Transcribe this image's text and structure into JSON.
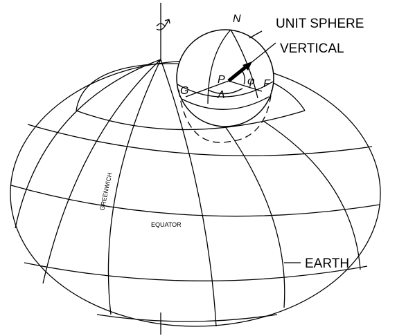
{
  "labels": {
    "unit_sphere": "UNIT SPHERE",
    "vertical": "VERTICAL",
    "earth": "EARTH",
    "north": "N",
    "point": "P",
    "greenwich_dir": "G",
    "f_dir": "F",
    "latitude": "φ",
    "longitude": "Λ",
    "greenwich": "GREENWICH",
    "equator": "EQUATOR"
  }
}
